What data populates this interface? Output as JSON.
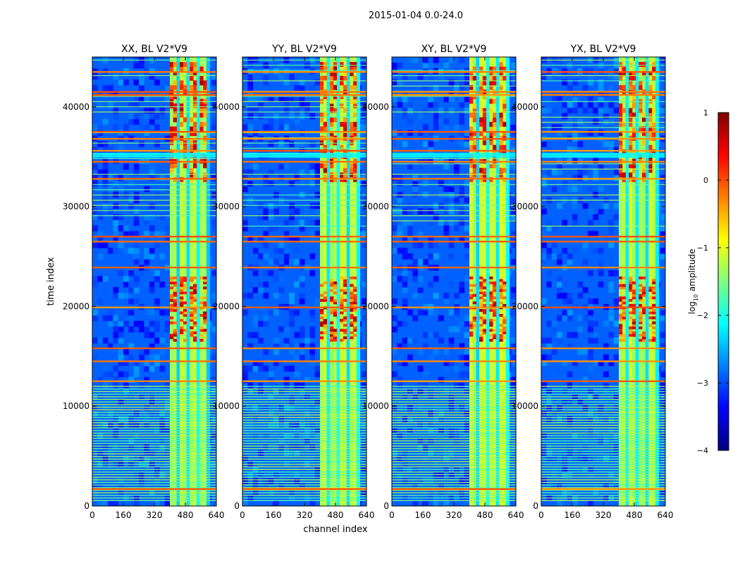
{
  "figure": {
    "suptitle": "2015-01-04 0.0-24.0"
  },
  "chart_data": {
    "type": "heatmap",
    "xlabel": "channel index",
    "ylabel": "time index",
    "xlim": [
      0,
      640
    ],
    "ylim": [
      0,
      45000
    ],
    "x_ticks": [
      0,
      160,
      320,
      480,
      640
    ],
    "y_ticks": [
      0,
      10000,
      20000,
      30000,
      40000
    ],
    "panels": [
      {
        "title": "XX, BL V2*V9",
        "polarization": "XX",
        "band_start": 400,
        "band_end": 640
      },
      {
        "title": "YY, BL V2*V9",
        "polarization": "YY",
        "band_start": 400,
        "band_end": 640
      },
      {
        "title": "XY, BL V2*V9",
        "polarization": "XY",
        "band_start": 400,
        "band_end": 640
      },
      {
        "title": "YX, BL V2*V9",
        "polarization": "YX",
        "band_start": 400,
        "band_end": 640
      }
    ],
    "bright_time_rows": [
      1700,
      12500,
      14500,
      15800,
      19900,
      23900,
      26500,
      27000,
      32800,
      34500,
      35600,
      36800,
      37500,
      41200,
      41500,
      43500
    ],
    "active_time_ranges": [
      [
        16500,
        23000
      ],
      [
        32500,
        44500
      ]
    ],
    "colorbar": {
      "label": "log10 amplitude",
      "range": [
        -4,
        1
      ],
      "ticks": [
        1,
        0,
        -1,
        -2,
        -3,
        -4
      ],
      "colormap": [
        "#00007f",
        "#0000ff",
        "#007fff",
        "#00ffff",
        "#7fff7f",
        "#ffff00",
        "#ff7f00",
        "#ff0000",
        "#7f0000"
      ]
    }
  }
}
